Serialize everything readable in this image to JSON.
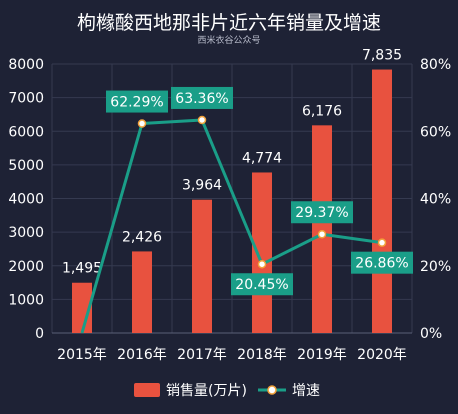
{
  "chart_data": {
    "type": "bar",
    "title": "枸橼酸西地那非片近六年销量及增速",
    "subtitle": "西米衣谷公众号",
    "categories": [
      "2015年",
      "2016年",
      "2017年",
      "2018年",
      "2019年",
      "2020年"
    ],
    "series": [
      {
        "name": "销售量(万片)",
        "type": "bar",
        "axis": "left",
        "values": [
          1495,
          2426,
          3964,
          4774,
          6176,
          7835
        ],
        "labels": [
          "1,495",
          "2,426",
          "3,964",
          "4,774",
          "6,176",
          "7,835"
        ]
      },
      {
        "name": "增速",
        "type": "line",
        "axis": "right",
        "values": [
          0,
          62.29,
          63.36,
          20.45,
          29.37,
          26.86
        ],
        "labels": [
          "",
          "62.29%",
          "63.36%",
          "20.45%",
          "29.37%",
          "26.86%"
        ]
      }
    ],
    "yleft": {
      "min": 0,
      "max": 8000,
      "ticks": [
        "0",
        "1000",
        "2000",
        "3000",
        "4000",
        "5000",
        "6000",
        "7000",
        "8000"
      ]
    },
    "yright": {
      "min": 0,
      "max": 80,
      "ticks": [
        "0%",
        "20%",
        "40%",
        "60%",
        "80%"
      ]
    },
    "legend_position": "bottom",
    "grid": true,
    "colors": {
      "bar": "#e8523f",
      "line": "#1a9e88",
      "grid": "#353a50",
      "background": "#1e2235"
    }
  }
}
